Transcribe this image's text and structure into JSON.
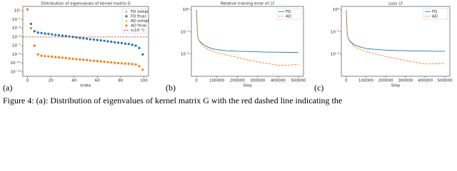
{
  "chart_data": [
    {
      "type": "scatter",
      "title": "Distribution of eigenvalues of kernel matrix G",
      "xlabel": "Index",
      "x": [
        0,
        3,
        6,
        9,
        12,
        15,
        18,
        21,
        24,
        27,
        30,
        33,
        36,
        39,
        42,
        45,
        48,
        51,
        54,
        57,
        60,
        63,
        66,
        69,
        72,
        75,
        78,
        81,
        84,
        87,
        90,
        93,
        96,
        99
      ],
      "series": [
        {
          "name": "FD initial",
          "color": "#aec7e8",
          "values": [
            20,
            0.01,
            0.0002,
            0.0001,
            8e-05,
            6e-05,
            5e-05,
            4e-05,
            3e-05,
            2.5e-05,
            2e-05,
            1.6e-05,
            1.3e-05,
            1e-05,
            8e-06,
            6e-06,
            5e-06,
            4e-06,
            3e-06,
            2.5e-06,
            2e-06,
            1.6e-06,
            1.3e-06,
            1e-06,
            8e-07,
            6e-07,
            5e-07,
            4e-07,
            3e-07,
            2.5e-07,
            1.6e-07,
            1e-07,
            3e-08,
            1e-09
          ]
        },
        {
          "name": "FD final",
          "color": "#1f77b4",
          "values": [
            20,
            0.01,
            0.0002,
            0.0001,
            8e-05,
            6e-05,
            5e-05,
            4e-05,
            3e-05,
            2.5e-05,
            2e-05,
            1.6e-05,
            1.3e-05,
            1e-05,
            8e-06,
            6e-06,
            5e-06,
            4e-06,
            3e-06,
            2.5e-06,
            2e-06,
            1.6e-06,
            1.3e-06,
            1e-06,
            8e-07,
            6e-07,
            5e-07,
            4e-07,
            3e-07,
            2.5e-07,
            1.6e-07,
            1e-07,
            3e-08,
            1e-09
          ]
        },
        {
          "name": "AD initial",
          "color": "#ffbb78",
          "values": [
            20,
            0.001,
            1e-07,
            1e-09,
            5e-10,
            4e-10,
            3.5e-10,
            3e-10,
            2.5e-10,
            2e-10,
            1.8e-10,
            1.5e-10,
            1.2e-10,
            1e-10,
            8e-11,
            7e-11,
            6e-11,
            5e-11,
            4e-11,
            3.5e-11,
            3e-11,
            2.5e-11,
            2e-11,
            1.8e-11,
            1.5e-11,
            1.2e-11,
            1e-11,
            9e-12,
            8e-12,
            7e-12,
            6e-12,
            5e-12,
            2e-12,
            3e-13
          ]
        },
        {
          "name": "AD final",
          "color": "#ff7f0e",
          "values": [
            20,
            0.001,
            1e-07,
            1e-09,
            5e-10,
            4e-10,
            3.5e-10,
            3e-10,
            2.5e-10,
            2e-10,
            1.8e-10,
            1.5e-10,
            1.2e-10,
            1e-10,
            8e-11,
            7e-11,
            6e-11,
            5e-11,
            4e-11,
            3.5e-11,
            3e-11,
            2.5e-11,
            2e-11,
            1.8e-11,
            1.5e-11,
            1.2e-11,
            1e-11,
            9e-12,
            8e-12,
            7e-12,
            6e-12,
            5e-12,
            2e-12,
            3e-13
          ]
        }
      ],
      "hline": {
        "value": 1e-05,
        "label": "ε(10⁻⁵)",
        "color": "#d62728"
      },
      "xlim": [
        -4,
        104
      ],
      "xticks": [
        0,
        20,
        40,
        60,
        80,
        100
      ],
      "ylim": [
        1e-14,
        100
      ],
      "yscale": "log",
      "yticks": [
        {
          "value": 10,
          "label": "10¹"
        },
        {
          "value": 0.1,
          "label": "10⁻¹"
        },
        {
          "value": 0.001,
          "label": "10⁻³"
        },
        {
          "value": 1e-05,
          "label": "10⁻⁵"
        },
        {
          "value": 1e-07,
          "label": "10⁻⁷"
        },
        {
          "value": 1e-09,
          "label": "10⁻⁹"
        },
        {
          "value": 1e-11,
          "label": "10⁻¹¹"
        },
        {
          "value": 1e-13,
          "label": "10⁻¹³"
        }
      ],
      "legend": "upper right"
    },
    {
      "type": "line",
      "title": "Relative training error of ℒf",
      "xlabel": "Step",
      "x": [
        0,
        5000,
        10000,
        20000,
        40000,
        60000,
        80000,
        100000,
        150000,
        200000,
        250000,
        300000,
        350000,
        400000,
        450000,
        500000
      ],
      "series": [
        {
          "name": "FD",
          "color": "#1f77b4",
          "linestyle": "solid",
          "values": [
            1,
            0.005,
            0.002,
            0.0012,
            0.0006,
            0.0004,
            0.0003,
            0.00025,
            0.0002,
            0.00018,
            0.00017,
            0.00016,
            0.00015,
            0.00015,
            0.00014,
            0.00014
          ]
        },
        {
          "name": "AD",
          "color": "#ff7f0e",
          "linestyle": "dashed",
          "values": [
            1,
            0.005,
            0.002,
            0.001,
            0.0004,
            0.00025,
            0.00018,
            0.00013,
            8e-05,
            5e-05,
            3e-05,
            2e-05,
            1.4e-05,
            1e-05,
            1e-05,
            1.2e-05
          ]
        }
      ],
      "xlim": [
        -25000,
        525000
      ],
      "xticks": [
        0,
        100000,
        200000,
        300000,
        400000,
        500000
      ],
      "ylim": [
        1e-06,
        2
      ],
      "yscale": "log",
      "yticks": [
        {
          "value": 1,
          "label": "10⁰"
        },
        {
          "value": 0.01,
          "label": "10⁻²"
        },
        {
          "value": 0.0001,
          "label": "10⁻⁴"
        }
      ],
      "legend": "upper right"
    },
    {
      "type": "line",
      "title": "Loss ℒf",
      "xlabel": "Step",
      "x": [
        0,
        5000,
        10000,
        20000,
        40000,
        60000,
        80000,
        100000,
        150000,
        200000,
        250000,
        300000,
        350000,
        400000,
        450000,
        500000
      ],
      "series": [
        {
          "name": "FD",
          "color": "#1f77b4",
          "linestyle": "solid",
          "values": [
            1,
            0.006,
            0.0025,
            0.0014,
            0.0007,
            0.0005,
            0.0004,
            0.00032,
            0.00026,
            0.00023,
            0.00021,
            0.0002,
            0.00019,
            0.00019,
            0.00018,
            0.00018
          ]
        },
        {
          "name": "AD",
          "color": "#ff7f0e",
          "linestyle": "dashed",
          "values": [
            1,
            0.006,
            0.0025,
            0.0012,
            0.0005,
            0.00032,
            0.00023,
            0.00016,
            0.0001,
            6e-05,
            4e-05,
            2.6e-05,
            1.8e-05,
            1.3e-05,
            1.3e-05,
            1.5e-05
          ]
        }
      ],
      "xlim": [
        -25000,
        525000
      ],
      "xticks": [
        0,
        100000,
        200000,
        300000,
        400000,
        500000
      ],
      "ylim": [
        1e-06,
        2
      ],
      "yscale": "log",
      "yticks": [
        {
          "value": 1,
          "label": "10⁰"
        },
        {
          "value": 0.01,
          "label": "10⁻²"
        },
        {
          "value": 0.0001,
          "label": "10⁻⁴"
        }
      ],
      "legend": "upper right"
    }
  ],
  "panel_labels": [
    "(a)",
    "(b)",
    "(c)"
  ],
  "caption": "Figure 4: (a): Distribution of eigenvalues of kernel matrix G with the red dashed line indicating the"
}
